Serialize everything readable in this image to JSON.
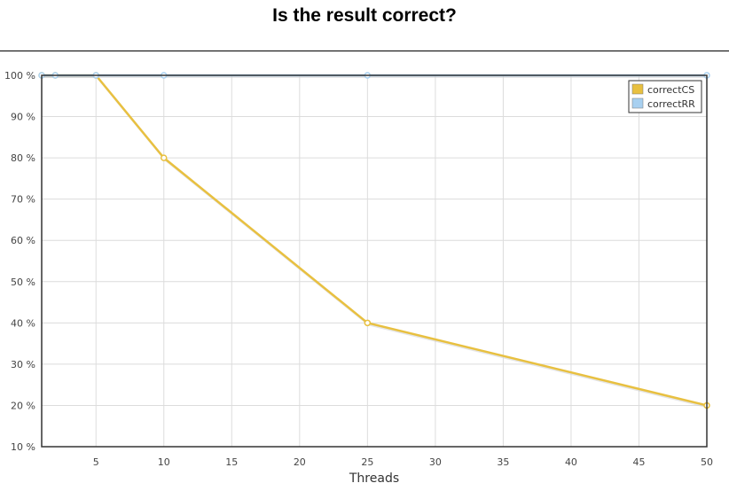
{
  "chart_data": {
    "type": "line",
    "title": "Is the result correct?",
    "xlabel": "Threads",
    "ylabel": "",
    "xlim": [
      1,
      50
    ],
    "ylim": [
      10,
      100
    ],
    "x_ticks": [
      5,
      10,
      15,
      20,
      25,
      30,
      35,
      40,
      45,
      50
    ],
    "y_ticks": [
      10,
      20,
      30,
      40,
      50,
      60,
      70,
      80,
      90,
      100
    ],
    "y_tick_suffix": " %",
    "grid": true,
    "legend_position": "top-right",
    "series": [
      {
        "name": "correctCS",
        "color": "#e8c040",
        "points": [
          {
            "x": 1,
            "y": 100
          },
          {
            "x": 2,
            "y": 100
          },
          {
            "x": 5,
            "y": 100
          },
          {
            "x": 10,
            "y": 80
          },
          {
            "x": 25,
            "y": 40
          },
          {
            "x": 50,
            "y": 20
          }
        ]
      },
      {
        "name": "correctRR",
        "color": "#a8d0f0",
        "points": [
          {
            "x": 1,
            "y": 100
          },
          {
            "x": 2,
            "y": 100
          },
          {
            "x": 5,
            "y": 100
          },
          {
            "x": 10,
            "y": 100
          },
          {
            "x": 25,
            "y": 100
          },
          {
            "x": 50,
            "y": 100
          }
        ]
      }
    ]
  }
}
